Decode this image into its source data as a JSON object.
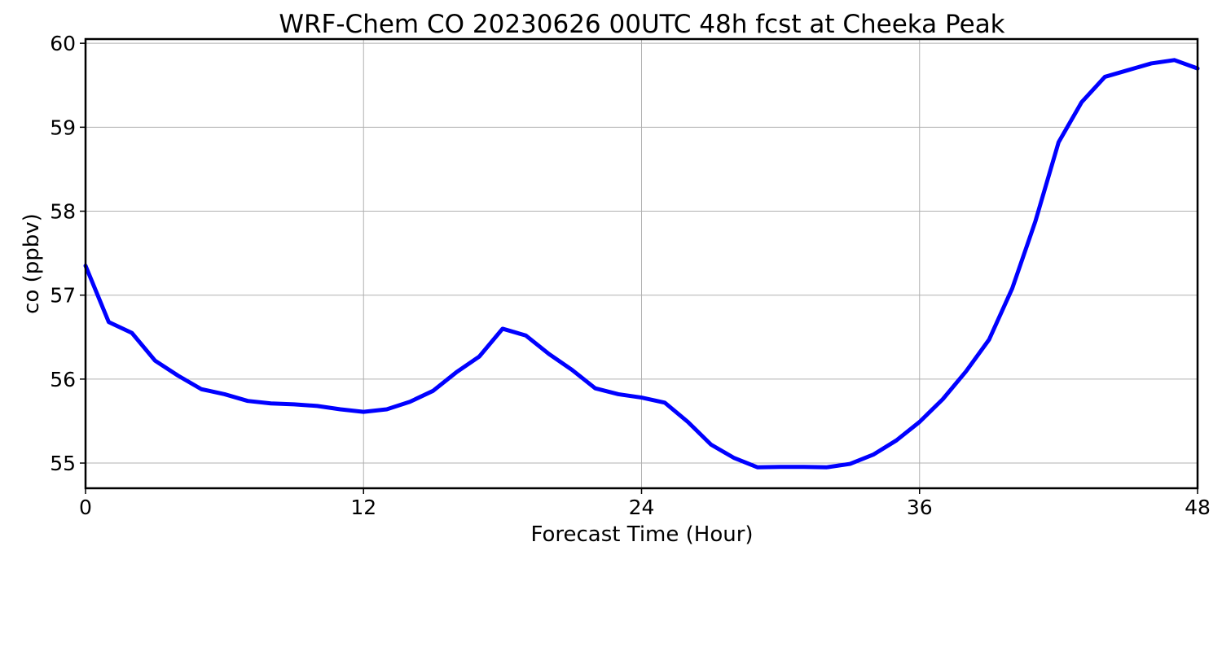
{
  "chart_data": {
    "type": "line",
    "title": "WRF-Chem CO  20230626 00UTC 48h fcst at Cheeka Peak",
    "xlabel": "Forecast Time (Hour)",
    "ylabel": "co  (ppbv)",
    "xlim": [
      0,
      48
    ],
    "ylim": [
      54.7,
      60.05
    ],
    "xticks": [
      0,
      12,
      24,
      36,
      48
    ],
    "yticks": [
      55,
      56,
      57,
      58,
      59,
      60
    ],
    "grid": true,
    "series": [
      {
        "color": "#0000ff",
        "x": [
          0,
          1,
          2,
          3,
          4,
          5,
          6,
          7,
          8,
          9,
          10,
          11,
          12,
          13,
          14,
          15,
          16,
          17,
          18,
          19,
          20,
          21,
          22,
          23,
          24,
          25,
          26,
          27,
          28,
          29,
          30,
          31,
          32,
          33,
          34,
          35,
          36,
          37,
          38,
          39,
          40,
          41,
          42,
          43,
          44,
          45,
          46,
          47,
          48
        ],
        "y": [
          57.35,
          56.68,
          56.55,
          56.22,
          56.04,
          55.88,
          55.82,
          55.74,
          55.71,
          55.7,
          55.68,
          55.64,
          55.61,
          55.64,
          55.73,
          55.86,
          56.08,
          56.27,
          56.6,
          56.52,
          56.3,
          56.11,
          55.89,
          55.82,
          55.78,
          55.72,
          55.49,
          55.22,
          55.06,
          54.95,
          54.955,
          54.955,
          54.95,
          54.99,
          55.1,
          55.27,
          55.49,
          55.76,
          56.09,
          56.47,
          57.08,
          57.88,
          58.82,
          59.3,
          59.6,
          59.68,
          59.76,
          59.8,
          59.7
        ]
      }
    ]
  }
}
